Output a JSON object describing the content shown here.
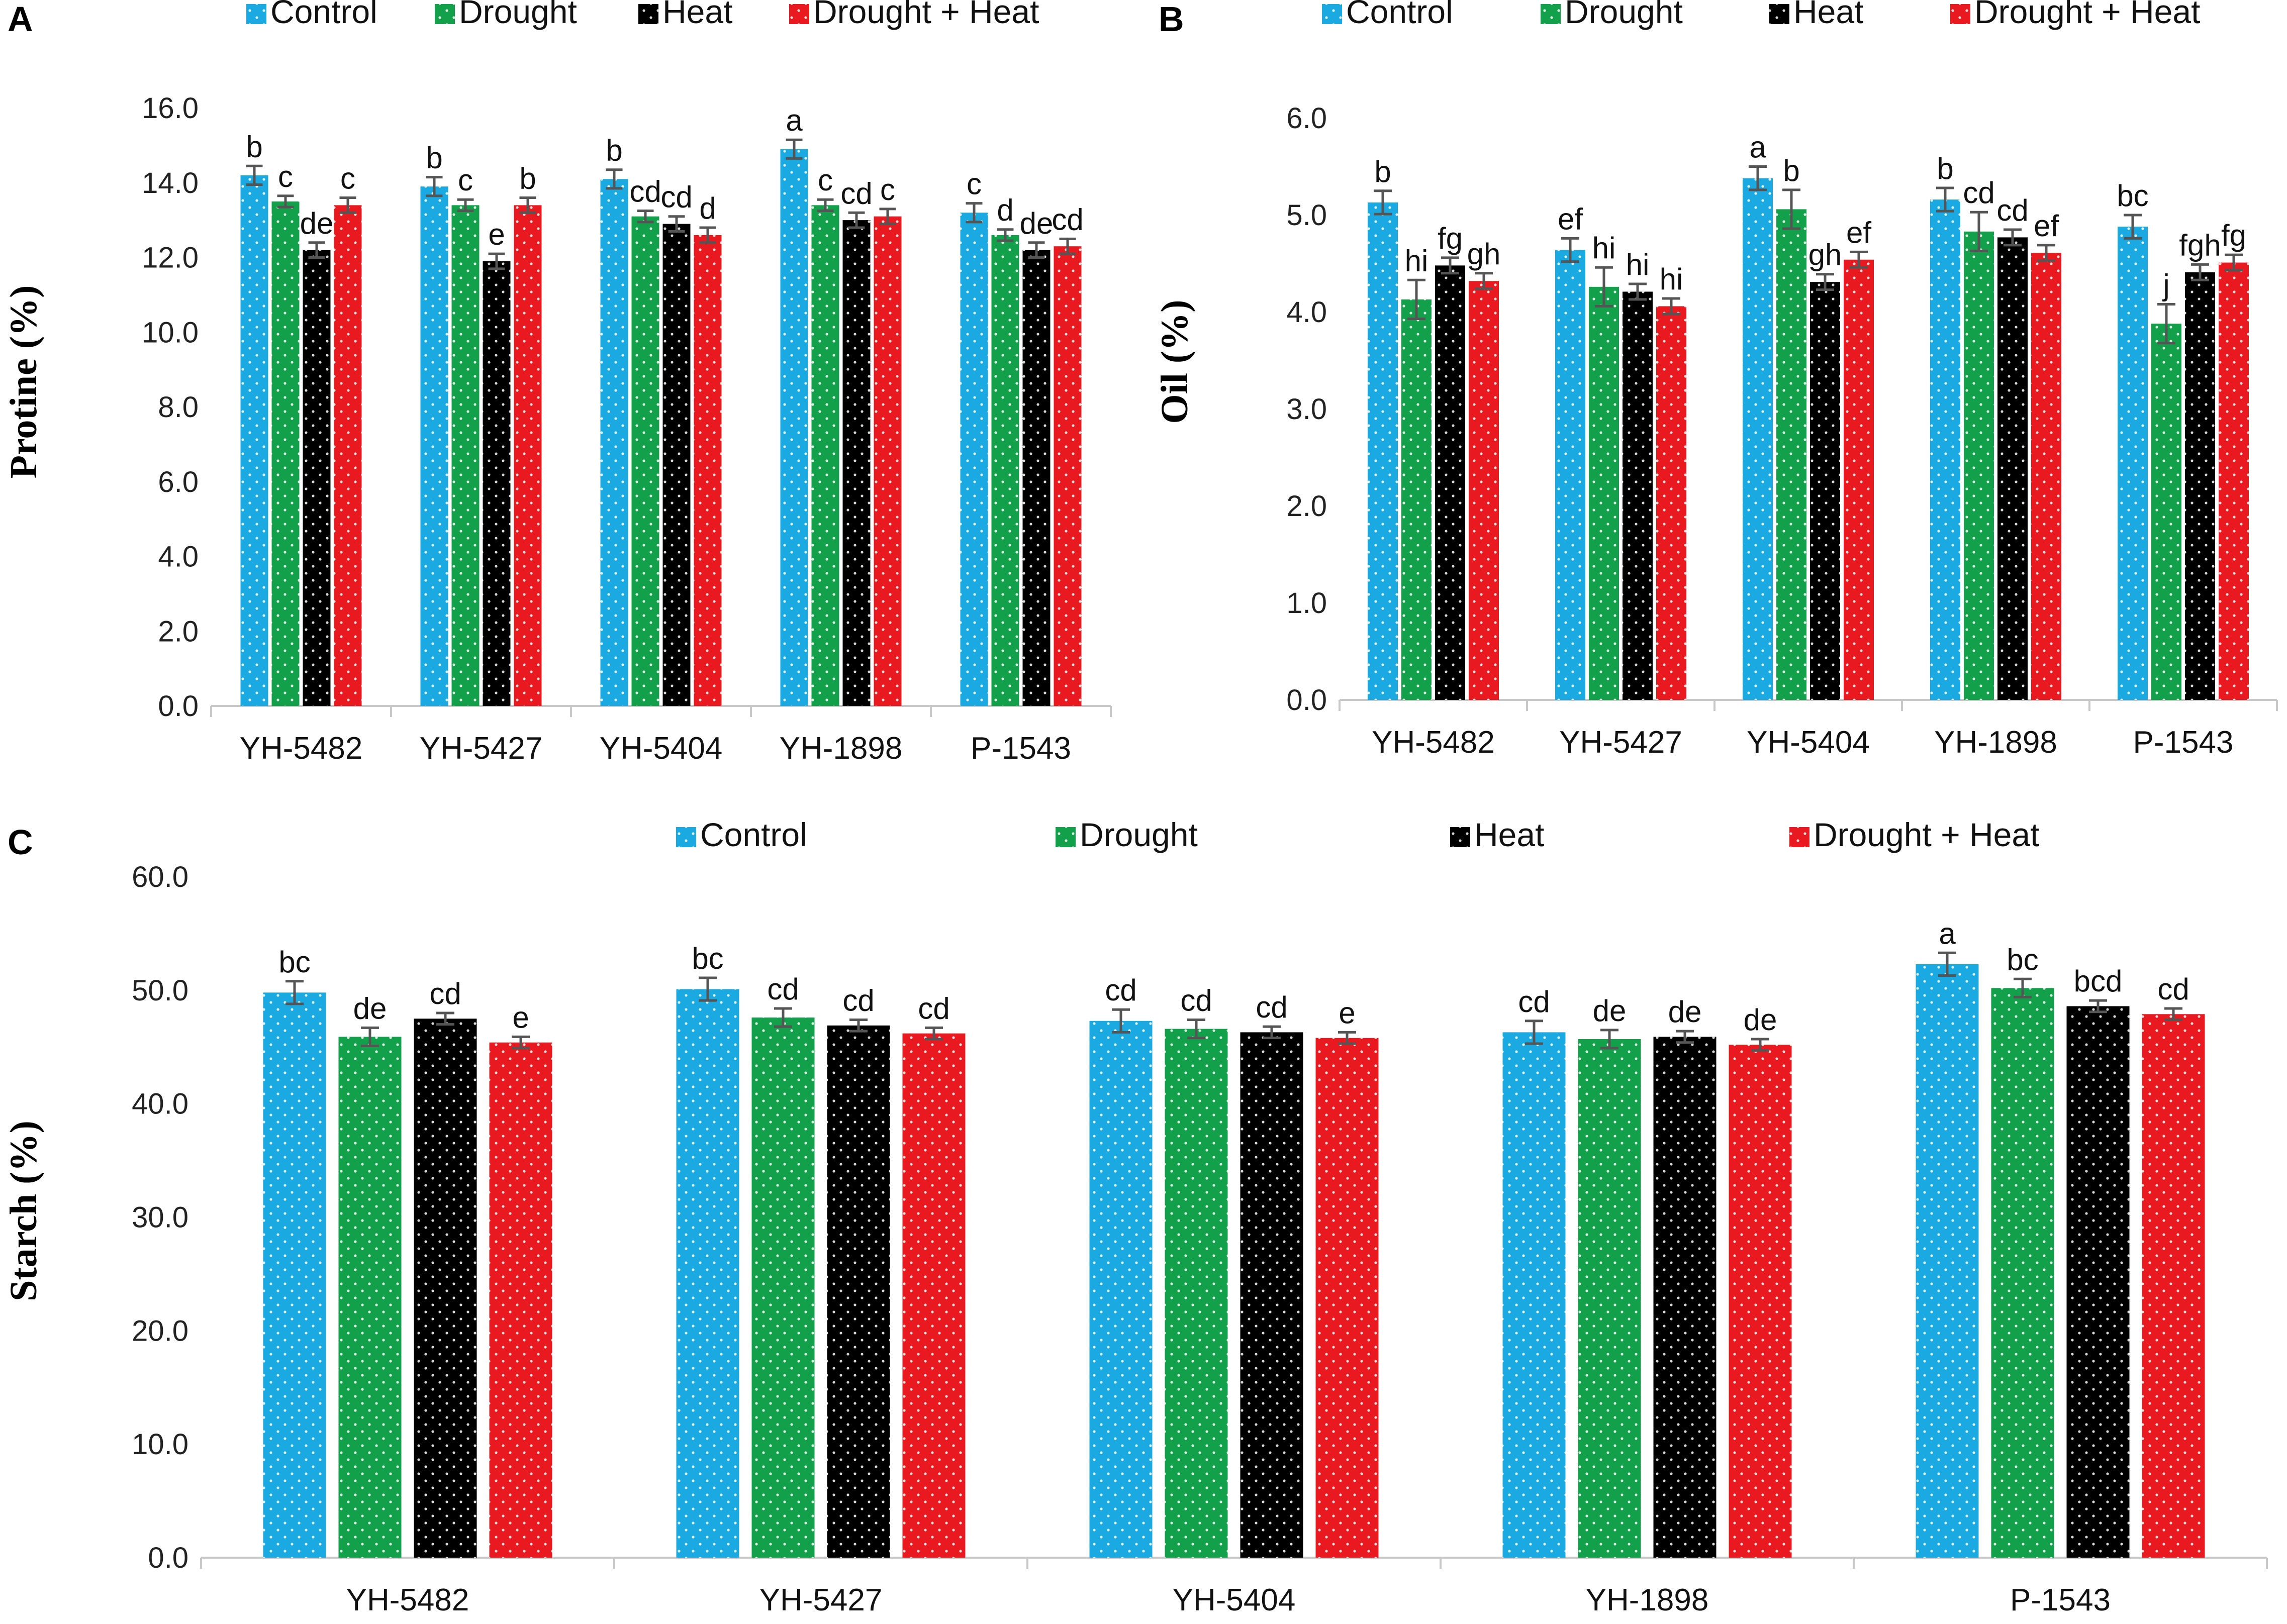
{
  "colors": {
    "Control": "#1BA9E1",
    "Drought": "#12A14A",
    "Heat": "#000000",
    "Drought + Heat": "#E8191F"
  },
  "chart_data": [
    {
      "type": "bar",
      "panel_label": "A",
      "ylabel": "Protine (%)",
      "xlabel": "",
      "ylim": [
        0,
        16
      ],
      "yticks": [
        "0.0",
        "2.0",
        "4.0",
        "6.0",
        "8.0",
        "10.0",
        "12.0",
        "14.0",
        "16.0"
      ],
      "legend": [
        "Control",
        "Drought",
        "Heat",
        "Drought + Heat"
      ],
      "legend_position": "top",
      "categories": [
        "YH-5482",
        "YH-5427",
        "YH-5404",
        "YH-1898",
        "P-1543"
      ],
      "series": [
        {
          "name": "Control",
          "values": [
            14.2,
            13.9,
            14.1,
            14.9,
            13.2
          ],
          "errors": [
            0.25,
            0.25,
            0.25,
            0.25,
            0.25
          ],
          "letters": [
            "b",
            "b",
            "b",
            "a",
            "c"
          ]
        },
        {
          "name": "Drought",
          "values": [
            13.5,
            13.4,
            13.1,
            13.4,
            12.6
          ],
          "errors": [
            0.15,
            0.15,
            0.15,
            0.15,
            0.15
          ],
          "letters": [
            "c",
            "c",
            "cd",
            "c",
            "d"
          ]
        },
        {
          "name": "Heat",
          "values": [
            12.2,
            11.9,
            12.9,
            13.0,
            12.2
          ],
          "errors": [
            0.2,
            0.2,
            0.2,
            0.2,
            0.2
          ],
          "letters": [
            "de",
            "e",
            "cd",
            "cd",
            "de"
          ]
        },
        {
          "name": "Drought + Heat",
          "values": [
            13.4,
            13.4,
            12.6,
            13.1,
            12.3
          ],
          "errors": [
            0.2,
            0.2,
            0.2,
            0.2,
            0.2
          ],
          "letters": [
            "c",
            "b",
            "d",
            "c",
            "cd"
          ]
        }
      ]
    },
    {
      "type": "bar",
      "panel_label": "B",
      "ylabel": "Oil (%)",
      "xlabel": "",
      "ylim": [
        0,
        6
      ],
      "yticks": [
        "0.0",
        "1.0",
        "2.0",
        "3.0",
        "4.0",
        "5.0",
        "6.0"
      ],
      "legend": [
        "Control",
        "Drought",
        "Heat",
        "Drought + Heat"
      ],
      "legend_position": "top",
      "categories": [
        "YH-5482",
        "YH-5427",
        "YH-5404",
        "YH-1898",
        "P-1543"
      ],
      "series": [
        {
          "name": "Control",
          "values": [
            5.13,
            4.64,
            5.38,
            5.16,
            4.88
          ],
          "errors": [
            0.12,
            0.12,
            0.12,
            0.12,
            0.12
          ],
          "letters": [
            "b",
            "ef",
            "a",
            "b",
            "bc"
          ]
        },
        {
          "name": "Drought",
          "values": [
            4.13,
            4.26,
            5.06,
            4.83,
            3.88
          ],
          "errors": [
            0.2,
            0.2,
            0.2,
            0.2,
            0.2
          ],
          "letters": [
            "hi",
            "hi",
            "b",
            "cd",
            "j"
          ]
        },
        {
          "name": "Heat",
          "values": [
            4.48,
            4.21,
            4.31,
            4.77,
            4.41
          ],
          "errors": [
            0.08,
            0.08,
            0.08,
            0.08,
            0.08
          ],
          "letters": [
            "fg",
            "hi",
            "gh",
            "cd",
            "fgh"
          ]
        },
        {
          "name": "Drought + Heat",
          "values": [
            4.32,
            4.06,
            4.54,
            4.61,
            4.51
          ],
          "errors": [
            0.08,
            0.08,
            0.08,
            0.08,
            0.08
          ],
          "letters": [
            "gh",
            "hi",
            "ef",
            "ef",
            "fg"
          ]
        }
      ]
    },
    {
      "type": "bar",
      "panel_label": "C",
      "ylabel": "Starch (%)",
      "xlabel": "",
      "ylim": [
        0,
        60
      ],
      "yticks": [
        "0.0",
        "10.0",
        "20.0",
        "30.0",
        "40.0",
        "50.0",
        "60.0"
      ],
      "legend": [
        "Control",
        "Drought",
        "Heat",
        "Drought + Heat"
      ],
      "legend_position": "top",
      "categories": [
        "YH-5482",
        "YH-5427",
        "YH-5404",
        "YH-1898",
        "P-1543"
      ],
      "series": [
        {
          "name": "Control",
          "values": [
            49.8,
            50.1,
            47.3,
            46.3,
            52.3
          ],
          "errors": [
            1.0,
            1.0,
            1.0,
            1.0,
            1.0
          ],
          "letters": [
            "bc",
            "bc",
            "cd",
            "cd",
            "a"
          ]
        },
        {
          "name": "Drought",
          "values": [
            45.9,
            47.6,
            46.6,
            45.7,
            50.2
          ],
          "errors": [
            0.8,
            0.8,
            0.8,
            0.8,
            0.8
          ],
          "letters": [
            "de",
            "cd",
            "cd",
            "de",
            "bc"
          ]
        },
        {
          "name": "Heat",
          "values": [
            47.5,
            46.9,
            46.3,
            45.9,
            48.6
          ],
          "errors": [
            0.5,
            0.5,
            0.5,
            0.5,
            0.5
          ],
          "letters": [
            "cd",
            "cd",
            "cd",
            "de",
            "bcd"
          ]
        },
        {
          "name": "Drought + Heat",
          "values": [
            45.4,
            46.2,
            45.8,
            45.2,
            47.9
          ],
          "errors": [
            0.5,
            0.5,
            0.5,
            0.5,
            0.5
          ],
          "letters": [
            "e",
            "cd",
            "e",
            "de",
            "cd"
          ]
        }
      ]
    }
  ]
}
